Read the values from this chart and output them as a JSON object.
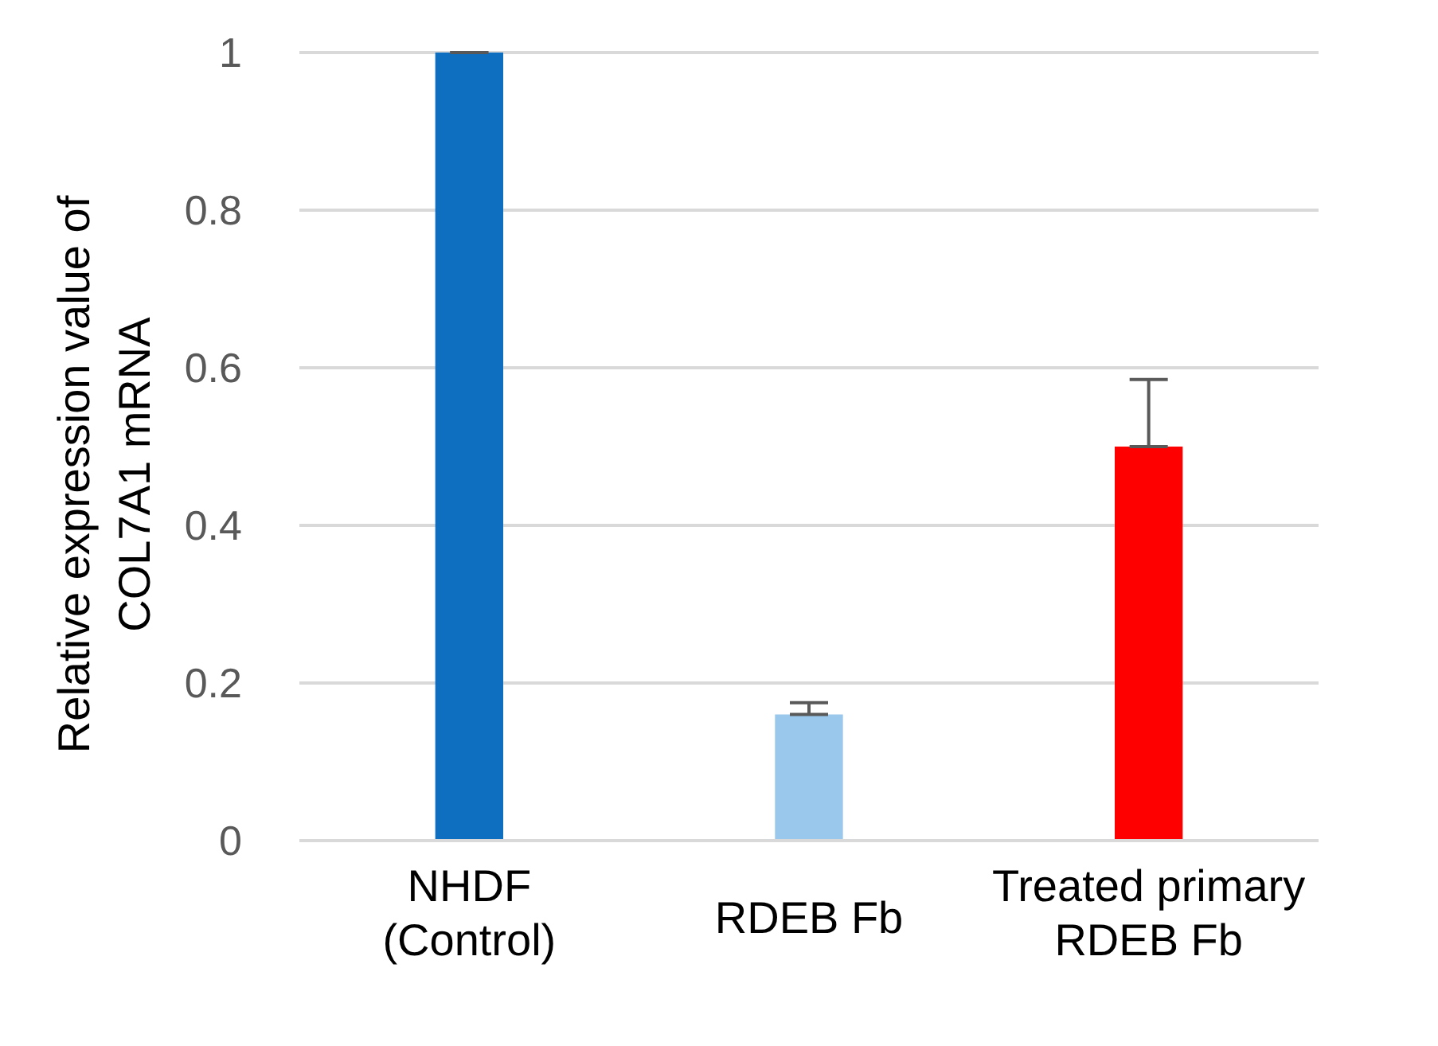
{
  "chart_data": {
    "type": "bar",
    "ylabel": "Relative expression value of COL7A1 mRNA",
    "categories": [
      "NHDF\n(Control)",
      "RDEB Fb",
      "Treated primary\nRDEB Fb"
    ],
    "values": [
      1,
      0.16,
      0.5
    ],
    "colors": [
      "#0e6fc1",
      "#9ac8ec",
      "#ff0000"
    ],
    "errors": [
      null,
      [
        0.16,
        0.175
      ],
      [
        0.5,
        0.585
      ]
    ],
    "ylim": [
      0,
      1
    ],
    "yticks": [
      0,
      0.2,
      0.4,
      0.6,
      0.8,
      1
    ],
    "grid": "y",
    "legend": false
  }
}
